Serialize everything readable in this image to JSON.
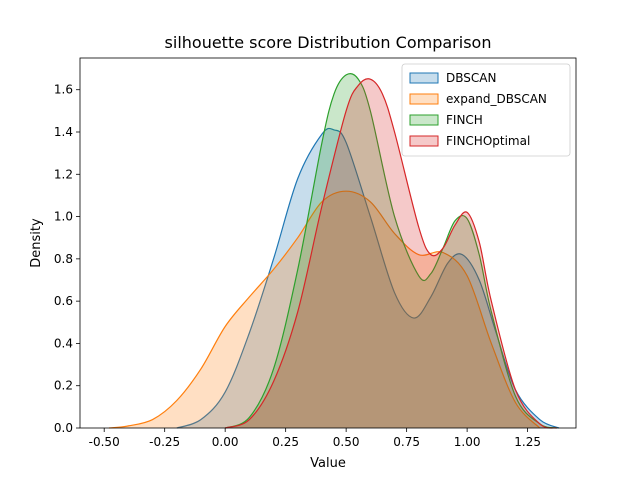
{
  "chart_data": {
    "type": "area",
    "title": "silhouette score Distribution Comparison",
    "xlabel": "Value",
    "ylabel": "Density",
    "xlim": [
      -0.6,
      1.45
    ],
    "ylim": [
      0,
      1.75
    ],
    "xticks": [
      "-0.50",
      "-0.25",
      "0.00",
      "0.25",
      "0.50",
      "0.75",
      "1.00",
      "1.25"
    ],
    "yticks": [
      "0.0",
      "0.2",
      "0.4",
      "0.6",
      "0.8",
      "1.0",
      "1.2",
      "1.4",
      "1.6"
    ],
    "grid": false,
    "legend_position": "top-right",
    "series": [
      {
        "name": "DBSCAN",
        "color": "#1f77b4",
        "x": [
          -0.2,
          -0.1,
          0.0,
          0.1,
          0.2,
          0.3,
          0.4,
          0.45,
          0.5,
          0.6,
          0.7,
          0.78,
          0.85,
          0.92,
          0.98,
          1.05,
          1.12,
          1.2,
          1.3,
          1.38
        ],
        "values": [
          0.0,
          0.04,
          0.17,
          0.45,
          0.8,
          1.18,
          1.39,
          1.41,
          1.35,
          1.0,
          0.64,
          0.52,
          0.62,
          0.78,
          0.82,
          0.7,
          0.45,
          0.18,
          0.04,
          0.0
        ]
      },
      {
        "name": "expand_DBSCAN",
        "color": "#ff7f0e",
        "x": [
          -0.48,
          -0.4,
          -0.3,
          -0.2,
          -0.1,
          0.0,
          0.1,
          0.2,
          0.3,
          0.4,
          0.5,
          0.6,
          0.7,
          0.8,
          0.9,
          1.0,
          1.1,
          1.2,
          1.3
        ],
        "values": [
          0.0,
          0.01,
          0.04,
          0.13,
          0.28,
          0.48,
          0.62,
          0.75,
          0.9,
          1.07,
          1.12,
          1.07,
          0.92,
          0.82,
          0.83,
          0.72,
          0.4,
          0.12,
          0.0
        ]
      },
      {
        "name": "FINCH",
        "color": "#2ca02c",
        "x": [
          0.0,
          0.1,
          0.2,
          0.3,
          0.4,
          0.45,
          0.5,
          0.55,
          0.6,
          0.7,
          0.8,
          0.85,
          0.9,
          0.95,
          1.0,
          1.05,
          1.1,
          1.2,
          1.3,
          1.37
        ],
        "values": [
          0.0,
          0.05,
          0.28,
          0.75,
          1.35,
          1.58,
          1.67,
          1.65,
          1.5,
          1.0,
          0.72,
          0.73,
          0.85,
          0.98,
          0.99,
          0.82,
          0.55,
          0.15,
          0.02,
          0.0
        ]
      },
      {
        "name": "FINCHOptimal",
        "color": "#d62728",
        "x": [
          0.0,
          0.1,
          0.2,
          0.3,
          0.4,
          0.5,
          0.55,
          0.6,
          0.65,
          0.7,
          0.8,
          0.85,
          0.9,
          0.95,
          1.0,
          1.05,
          1.1,
          1.2,
          1.3,
          1.37
        ],
        "values": [
          0.0,
          0.04,
          0.22,
          0.55,
          1.05,
          1.5,
          1.62,
          1.65,
          1.58,
          1.4,
          0.95,
          0.82,
          0.85,
          0.96,
          1.02,
          0.88,
          0.6,
          0.18,
          0.02,
          0.0
        ]
      }
    ]
  }
}
